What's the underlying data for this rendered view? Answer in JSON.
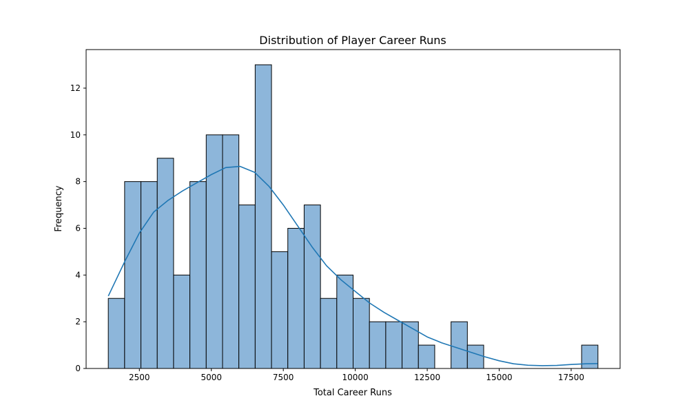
{
  "chart_data": {
    "type": "bar",
    "subtype": "histogram",
    "title": "Distribution of Player Career Runs",
    "xlabel": "Total Career Runs",
    "ylabel": "Frequency",
    "xlim": [
      650,
      19200
    ],
    "ylim": [
      0,
      13.65
    ],
    "xticks": [
      2500,
      5000,
      7500,
      10000,
      12500,
      15000,
      17500
    ],
    "yticks": [
      0,
      2,
      4,
      6,
      8,
      10,
      12
    ],
    "grid": false,
    "bin_start": 1420,
    "bin_width": 567,
    "counts": [
      3,
      8,
      8,
      9,
      4,
      8,
      10,
      10,
      7,
      13,
      5,
      6,
      7,
      3,
      4,
      3,
      2,
      2,
      2,
      1,
      0,
      2,
      1,
      0,
      0,
      0,
      0,
      0,
      0,
      1
    ],
    "kde": {
      "x": [
        1420,
        2000,
        2500,
        3000,
        3500,
        4000,
        4500,
        5000,
        5500,
        6000,
        6500,
        7000,
        7500,
        8000,
        8500,
        9000,
        9500,
        10000,
        10500,
        11000,
        11500,
        12000,
        12500,
        13000,
        13500,
        14000,
        14500,
        15000,
        15500,
        16000,
        16500,
        17000,
        17500,
        18000,
        18420
      ],
      "y": [
        3.1,
        4.6,
        5.8,
        6.7,
        7.2,
        7.6,
        7.95,
        8.3,
        8.6,
        8.65,
        8.4,
        7.8,
        7.0,
        6.1,
        5.2,
        4.4,
        3.8,
        3.3,
        2.8,
        2.4,
        2.05,
        1.7,
        1.35,
        1.1,
        0.9,
        0.7,
        0.5,
        0.33,
        0.2,
        0.14,
        0.12,
        0.13,
        0.17,
        0.2,
        0.21
      ]
    },
    "colors": {
      "bar_fill": "#8db6da",
      "bar_edge": "#000000",
      "kde_line": "#1f77b4"
    }
  }
}
